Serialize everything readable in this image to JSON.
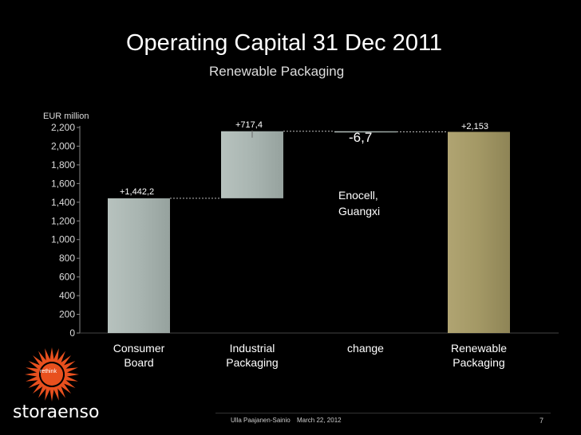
{
  "slide": {
    "title": "Operating Capital 31 Dec 2011",
    "subtitle": "Renewable Packaging",
    "footer_author": "Ulla Paajanen-Sainio",
    "footer_date": "March 22, 2012",
    "page_number": "7",
    "logo_text": "storaenso",
    "logo_badge": "rethink"
  },
  "colors": {
    "background": "#000000",
    "bar_gray": "#a9b5b1",
    "bar_total": "#a39865",
    "axis": "#888888"
  },
  "chart_data": {
    "type": "bar",
    "subtype": "waterfall",
    "ylabel": "EUR million",
    "ylim": [
      0,
      2200
    ],
    "yticks": [
      "0",
      "200",
      "400",
      "600",
      "800",
      "1,000",
      "1,200",
      "1,400",
      "1,600",
      "1,800",
      "2,000",
      "2,200"
    ],
    "ytick_values": [
      0,
      200,
      400,
      600,
      800,
      1000,
      1200,
      1400,
      1600,
      1800,
      2000,
      2200
    ],
    "categories": [
      [
        "Consumer",
        "Board"
      ],
      [
        "Industrial",
        "Packaging"
      ],
      [
        "change"
      ],
      [
        "Renewable",
        "Packaging"
      ]
    ],
    "bars": [
      {
        "base": 0,
        "top": 1442.2,
        "label": "+1,442,2"
      },
      {
        "base": 1442.2,
        "top": 2159.6,
        "label": "+717,4"
      },
      {
        "base": 2152.9,
        "top": 2159.6,
        "label": "-6,7"
      },
      {
        "base": 0,
        "top": 2153,
        "label": "+2,153"
      }
    ],
    "annotation": [
      "Enocell,",
      "Guangxi"
    ],
    "grid": false,
    "legend": "none"
  }
}
